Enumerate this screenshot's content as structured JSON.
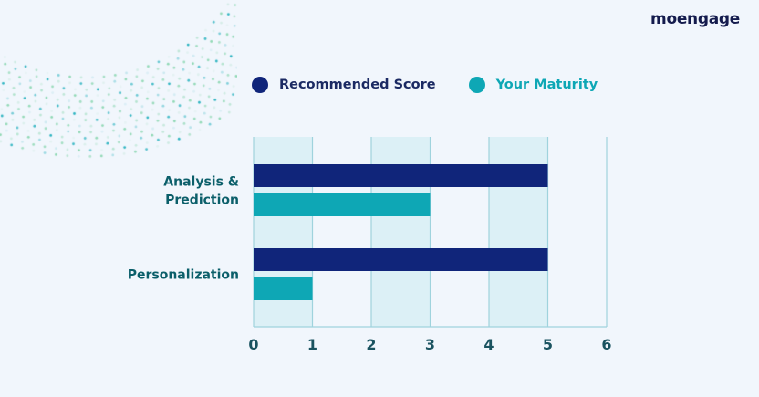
{
  "brand": {
    "logo_text": "moengage"
  },
  "colors": {
    "background": "#f1f6fc",
    "recommended": "#10257a",
    "maturity": "#0ea7b5",
    "band": "#dcf0f6",
    "grid": "#9fd3dd",
    "axis_text": "#1a5360",
    "category_text": "#0b5f6a",
    "dots_teal": "#2cb3c0",
    "dots_green": "#8fd8b4"
  },
  "legend": [
    {
      "name": "Recommended Score",
      "color": "#10257a",
      "text_color": "#1b2a63"
    },
    {
      "name": "Your Maturity",
      "color": "#0ea7b5",
      "text_color": "#0ea7b5"
    }
  ],
  "chart_data": {
    "type": "bar",
    "orientation": "horizontal",
    "categories": [
      "Analysis & Prediction",
      "Personalization"
    ],
    "category_label_lines": [
      [
        "Analysis &",
        "Prediction"
      ],
      [
        "Personalization"
      ]
    ],
    "series": [
      {
        "name": "Recommended Score",
        "values": [
          5,
          5
        ]
      },
      {
        "name": "Your Maturity",
        "values": [
          3,
          1
        ]
      }
    ],
    "xlim": [
      0,
      6
    ],
    "xticks": [
      "0",
      "1",
      "2",
      "3",
      "4",
      "5",
      "6"
    ],
    "grid": true,
    "alternating_bands": true,
    "legend_position": "top"
  }
}
